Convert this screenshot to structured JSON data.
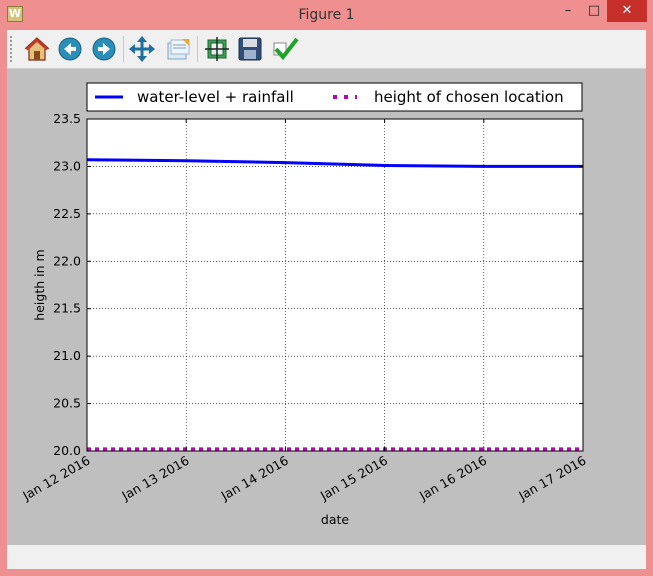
{
  "window": {
    "title": "Figure 1",
    "minimize_glyph": "–",
    "maximize_glyph": "□",
    "close_glyph": "✕",
    "app_icon_glyph": "W"
  },
  "toolbar": {
    "buttons": [
      {
        "name": "home-icon"
      },
      {
        "name": "back-icon"
      },
      {
        "name": "forward-icon"
      },
      {
        "name": "pan-icon"
      },
      {
        "name": "zoom-icon"
      },
      {
        "name": "subplots-icon"
      },
      {
        "name": "save-icon"
      },
      {
        "name": "edit-axis-icon"
      }
    ]
  },
  "chart_data": {
    "type": "line",
    "xlabel": "date",
    "ylabel": "heigth in m",
    "x": [
      "Jan 12 2016",
      "Jan 13 2016",
      "Jan 14 2016",
      "Jan 15 2016",
      "Jan 16 2016",
      "Jan 17 2016"
    ],
    "ylim": [
      20.0,
      23.5
    ],
    "yticks": [
      "20.0",
      "20.5",
      "21.0",
      "21.5",
      "22.0",
      "22.5",
      "23.0",
      "23.5"
    ],
    "grid": true,
    "legend_position": "top",
    "series": [
      {
        "name": "water-level + rainfall",
        "style": "solid",
        "color": "#0000ff",
        "values": [
          23.07,
          23.06,
          23.04,
          23.01,
          23.0,
          23.0
        ]
      },
      {
        "name": "height of chosen location",
        "style": "dotted",
        "color": "#bf00bf",
        "values": [
          20.02,
          20.02,
          20.02,
          20.02,
          20.02,
          20.02
        ]
      }
    ]
  }
}
